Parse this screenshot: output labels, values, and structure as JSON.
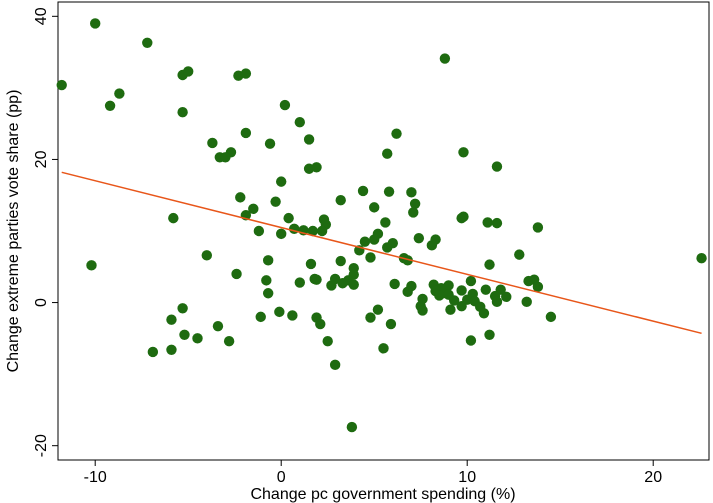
{
  "chart_data": {
    "type": "scatter",
    "title": "",
    "xlabel": "Change pc government spending (%)",
    "ylabel": "Change extreme parties vote share (pp)",
    "xlim": [
      -12,
      23
    ],
    "ylim": [
      -22,
      42
    ],
    "xticks": [
      -10,
      0,
      10,
      20
    ],
    "yticks": [
      -20,
      0,
      20,
      40
    ],
    "grid": false,
    "point_color": "#1e6b10",
    "fit_color": "#e8561a",
    "fit_line": {
      "x": [
        -11.8,
        22.6
      ],
      "y": [
        18.2,
        -4.3
      ]
    },
    "points": [
      {
        "x": -11.8,
        "y": 30.4
      },
      {
        "x": -10.0,
        "y": 39.0
      },
      {
        "x": -9.2,
        "y": 27.5
      },
      {
        "x": -8.7,
        "y": 29.2
      },
      {
        "x": -7.2,
        "y": 36.3
      },
      {
        "x": -5.3,
        "y": 31.8
      },
      {
        "x": -5.0,
        "y": 32.3
      },
      {
        "x": -5.3,
        "y": 26.6
      },
      {
        "x": -2.3,
        "y": 31.7
      },
      {
        "x": -1.9,
        "y": 32.0
      },
      {
        "x": 8.8,
        "y": 34.1
      },
      {
        "x": 0.2,
        "y": 27.6
      },
      {
        "x": 1.0,
        "y": 25.2
      },
      {
        "x": -1.9,
        "y": 23.7
      },
      {
        "x": 1.5,
        "y": 22.8
      },
      {
        "x": 6.2,
        "y": 23.6
      },
      {
        "x": -3.7,
        "y": 22.3
      },
      {
        "x": -0.6,
        "y": 22.2
      },
      {
        "x": -2.7,
        "y": 21.0
      },
      {
        "x": -3.3,
        "y": 20.3
      },
      {
        "x": -3.0,
        "y": 20.3
      },
      {
        "x": 5.7,
        "y": 20.8
      },
      {
        "x": 9.8,
        "y": 21.0
      },
      {
        "x": 1.9,
        "y": 18.9
      },
      {
        "x": 1.5,
        "y": 18.7
      },
      {
        "x": 11.6,
        "y": 19.0
      },
      {
        "x": 0.0,
        "y": 16.9
      },
      {
        "x": 4.4,
        "y": 15.6
      },
      {
        "x": 5.8,
        "y": 15.5
      },
      {
        "x": 7.0,
        "y": 15.4
      },
      {
        "x": -2.2,
        "y": 14.7
      },
      {
        "x": -0.3,
        "y": 14.1
      },
      {
        "x": 3.2,
        "y": 14.3
      },
      {
        "x": 7.2,
        "y": 13.8
      },
      {
        "x": -1.5,
        "y": 13.1
      },
      {
        "x": 5.0,
        "y": 13.3
      },
      {
        "x": 7.1,
        "y": 12.6
      },
      {
        "x": -1.9,
        "y": 12.2
      },
      {
        "x": 9.8,
        "y": 12.0
      },
      {
        "x": 9.7,
        "y": 11.8
      },
      {
        "x": 0.4,
        "y": 11.8
      },
      {
        "x": 2.3,
        "y": 11.6
      },
      {
        "x": 5.6,
        "y": 11.2
      },
      {
        "x": 11.1,
        "y": 11.2
      },
      {
        "x": 11.6,
        "y": 11.1
      },
      {
        "x": 2.4,
        "y": 10.9
      },
      {
        "x": 13.8,
        "y": 10.5
      },
      {
        "x": -5.8,
        "y": 11.8
      },
      {
        "x": -1.2,
        "y": 10.0
      },
      {
        "x": 0.7,
        "y": 10.3
      },
      {
        "x": 1.2,
        "y": 10.1
      },
      {
        "x": 1.7,
        "y": 10.0
      },
      {
        "x": 2.2,
        "y": 10.0
      },
      {
        "x": 0.0,
        "y": 9.6
      },
      {
        "x": 5.2,
        "y": 9.6
      },
      {
        "x": 5.0,
        "y": 8.8
      },
      {
        "x": 4.5,
        "y": 8.5
      },
      {
        "x": 6.0,
        "y": 8.3
      },
      {
        "x": 7.4,
        "y": 9.0
      },
      {
        "x": 8.3,
        "y": 8.8
      },
      {
        "x": 8.1,
        "y": 8.0
      },
      {
        "x": 5.7,
        "y": 7.7
      },
      {
        "x": 4.2,
        "y": 7.3
      },
      {
        "x": 12.8,
        "y": 6.7
      },
      {
        "x": -4.0,
        "y": 6.6
      },
      {
        "x": 4.8,
        "y": 6.3
      },
      {
        "x": 6.6,
        "y": 6.2
      },
      {
        "x": 6.8,
        "y": 5.9
      },
      {
        "x": 22.6,
        "y": 6.2
      },
      {
        "x": -0.7,
        "y": 5.9
      },
      {
        "x": 1.6,
        "y": 5.4
      },
      {
        "x": 3.2,
        "y": 5.8
      },
      {
        "x": -10.2,
        "y": 5.2
      },
      {
        "x": 11.2,
        "y": 5.3
      },
      {
        "x": 3.9,
        "y": 4.8
      },
      {
        "x": -2.4,
        "y": 4.0
      },
      {
        "x": 3.9,
        "y": 3.9
      },
      {
        "x": 1.8,
        "y": 3.3
      },
      {
        "x": 1.9,
        "y": 3.2
      },
      {
        "x": 2.9,
        "y": 3.3
      },
      {
        "x": 3.6,
        "y": 3.1
      },
      {
        "x": -0.8,
        "y": 3.1
      },
      {
        "x": 10.2,
        "y": 3.0
      },
      {
        "x": 13.3,
        "y": 3.0
      },
      {
        "x": 13.6,
        "y": 3.2
      },
      {
        "x": 1.0,
        "y": 2.8
      },
      {
        "x": 3.3,
        "y": 2.7
      },
      {
        "x": 6.1,
        "y": 2.6
      },
      {
        "x": 8.2,
        "y": 2.5
      },
      {
        "x": 9.0,
        "y": 2.4
      },
      {
        "x": 2.7,
        "y": 2.4
      },
      {
        "x": 3.9,
        "y": 2.5
      },
      {
        "x": 7.0,
        "y": 2.3
      },
      {
        "x": 13.8,
        "y": 2.2
      },
      {
        "x": 8.6,
        "y": 2.0
      },
      {
        "x": 8.3,
        "y": 1.6
      },
      {
        "x": 9.7,
        "y": 1.7
      },
      {
        "x": 11.0,
        "y": 1.8
      },
      {
        "x": 11.8,
        "y": 1.8
      },
      {
        "x": -0.7,
        "y": 1.3
      },
      {
        "x": 6.8,
        "y": 1.5
      },
      {
        "x": 8.7,
        "y": 1.3
      },
      {
        "x": 9.0,
        "y": 1.1
      },
      {
        "x": 10.3,
        "y": 1.2
      },
      {
        "x": 8.5,
        "y": 1.0
      },
      {
        "x": 11.5,
        "y": 0.9
      },
      {
        "x": 12.1,
        "y": 0.8
      },
      {
        "x": 7.6,
        "y": 0.5
      },
      {
        "x": 9.3,
        "y": 0.3
      },
      {
        "x": 10.0,
        "y": 0.4
      },
      {
        "x": 10.4,
        "y": 0.2
      },
      {
        "x": 11.6,
        "y": 0.1
      },
      {
        "x": 13.2,
        "y": 0.1
      },
      {
        "x": 7.5,
        "y": -0.5
      },
      {
        "x": 9.7,
        "y": -0.5
      },
      {
        "x": 10.7,
        "y": -0.6
      },
      {
        "x": -5.3,
        "y": -0.8
      },
      {
        "x": 7.6,
        "y": -1.1
      },
      {
        "x": 9.1,
        "y": -1.0
      },
      {
        "x": 5.2,
        "y": -1.0
      },
      {
        "x": 10.9,
        "y": -1.5
      },
      {
        "x": -0.1,
        "y": -1.3
      },
      {
        "x": 0.6,
        "y": -1.8
      },
      {
        "x": -1.1,
        "y": -2.0
      },
      {
        "x": 1.9,
        "y": -2.1
      },
      {
        "x": 4.8,
        "y": -2.1
      },
      {
        "x": 14.5,
        "y": -2.0
      },
      {
        "x": -5.9,
        "y": -2.4
      },
      {
        "x": 2.1,
        "y": -3.0
      },
      {
        "x": 5.9,
        "y": -3.0
      },
      {
        "x": -3.4,
        "y": -3.3
      },
      {
        "x": -5.2,
        "y": -4.5
      },
      {
        "x": -4.5,
        "y": -5.0
      },
      {
        "x": 11.2,
        "y": -4.5
      },
      {
        "x": 10.2,
        "y": -5.3
      },
      {
        "x": -2.8,
        "y": -5.4
      },
      {
        "x": 2.5,
        "y": -5.4
      },
      {
        "x": -5.9,
        "y": -6.6
      },
      {
        "x": -6.9,
        "y": -6.9
      },
      {
        "x": 5.5,
        "y": -6.4
      },
      {
        "x": 2.9,
        "y": -8.7
      },
      {
        "x": 3.8,
        "y": -17.4
      }
    ]
  }
}
